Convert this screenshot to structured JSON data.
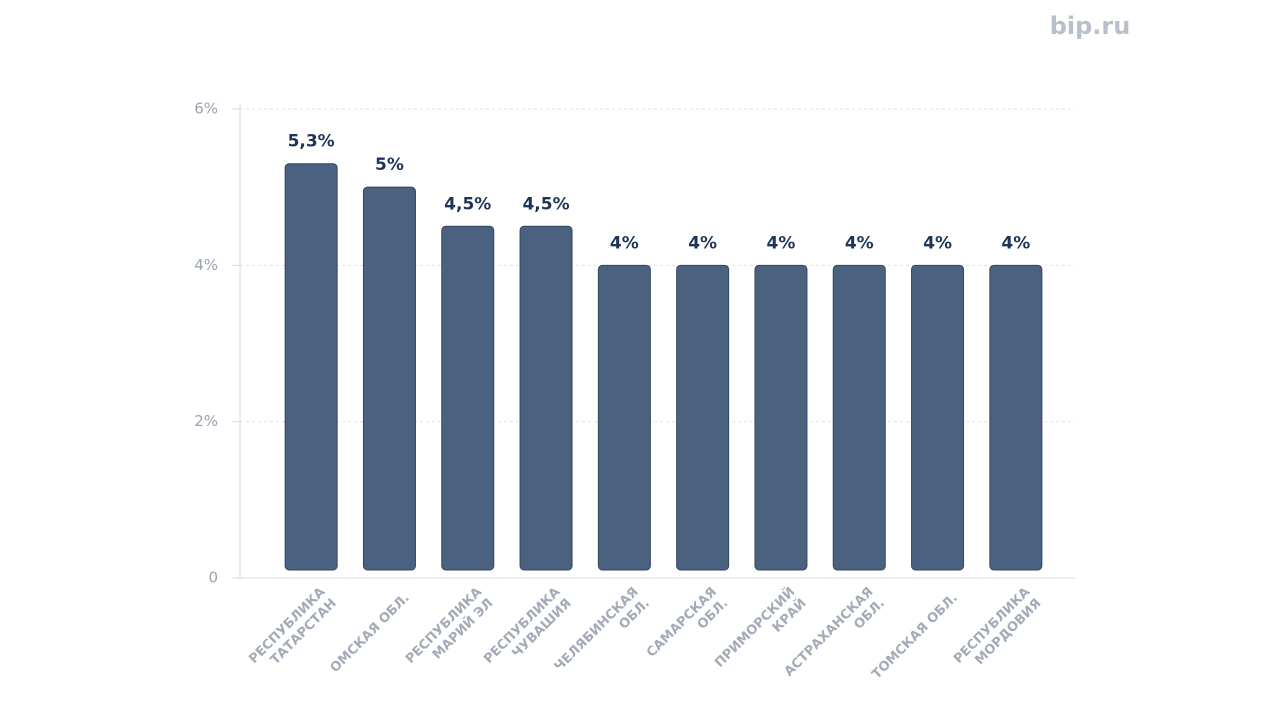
{
  "brand": "bip.ru",
  "chart_data": {
    "type": "bar",
    "categories": [
      [
        "РЕСПУБЛИКА",
        "ТАТАРСТАН"
      ],
      [
        "ОМСКАЯ ОБЛ."
      ],
      [
        "РЕСПУБЛИКА",
        "МАРИЙ ЭЛ"
      ],
      [
        "РЕСПУБЛИКА",
        "ЧУВАШИЯ"
      ],
      [
        "ЧЕЛЯБИНСКАЯ",
        "ОБЛ."
      ],
      [
        "САМАРСКАЯ",
        "ОБЛ."
      ],
      [
        "ПРИМОРСКИЙ",
        "КРАЙ"
      ],
      [
        "АСТРАХАНСКАЯ",
        "ОБЛ."
      ],
      [
        "ТОМСКАЯ ОБЛ."
      ],
      [
        "РЕСПУБЛИКА",
        "МОРДОВИЯ"
      ]
    ],
    "values": [
      5.3,
      5,
      4.5,
      4.5,
      4,
      4,
      4,
      4,
      4,
      4
    ],
    "value_labels": [
      "5,3%",
      "5%",
      "4,5%",
      "4,5%",
      "4%",
      "4%",
      "4%",
      "4%",
      "4%",
      "4%"
    ],
    "color": "#4a6180",
    "ylim": [
      0,
      6
    ],
    "yticks": [
      0,
      {
        "value": 2,
        "label": "2%"
      },
      {
        "value": 4,
        "label": "4%"
      },
      {
        "value": 6,
        "label": "6%"
      }
    ],
    "grid": true
  }
}
